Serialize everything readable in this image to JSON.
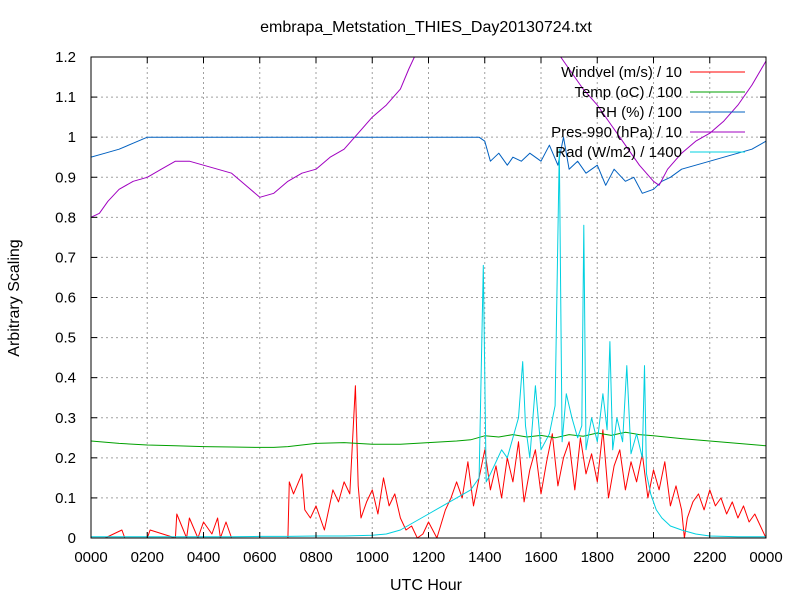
{
  "chart_data": {
    "type": "line",
    "title": "embrapa_Metstation_THIES_Day20130724.txt",
    "xlabel": "UTC Hour",
    "ylabel": "Arbitrary Scaling",
    "xlim": [
      0,
      24
    ],
    "ylim": [
      0,
      1.2
    ],
    "grid": true,
    "legend_position": "top-right",
    "x_ticks": [
      {
        "value": 0,
        "label": "0000"
      },
      {
        "value": 2,
        "label": "0200"
      },
      {
        "value": 4,
        "label": "0400"
      },
      {
        "value": 6,
        "label": "0600"
      },
      {
        "value": 8,
        "label": "0800"
      },
      {
        "value": 10,
        "label": "1000"
      },
      {
        "value": 12,
        "label": "1200"
      },
      {
        "value": 14,
        "label": "1400"
      },
      {
        "value": 16,
        "label": "1600"
      },
      {
        "value": 18,
        "label": "1800"
      },
      {
        "value": 20,
        "label": "2000"
      },
      {
        "value": 22,
        "label": "2200"
      },
      {
        "value": 24,
        "label": "0000"
      }
    ],
    "y_ticks": [
      {
        "value": 0,
        "label": "0"
      },
      {
        "value": 0.1,
        "label": "0.1"
      },
      {
        "value": 0.2,
        "label": "0.2"
      },
      {
        "value": 0.3,
        "label": "0.3"
      },
      {
        "value": 0.4,
        "label": "0.4"
      },
      {
        "value": 0.5,
        "label": "0.5"
      },
      {
        "value": 0.6,
        "label": "0.6"
      },
      {
        "value": 0.7,
        "label": "0.7"
      },
      {
        "value": 0.8,
        "label": "0.8"
      },
      {
        "value": 0.9,
        "label": "0.9"
      },
      {
        "value": 1,
        "label": "1"
      },
      {
        "value": 1.1,
        "label": "1.1"
      },
      {
        "value": 1.2,
        "label": "1.2"
      }
    ],
    "series": [
      {
        "name": "Windvel (m/s) / 10",
        "color": "#ff0000",
        "x": [
          0,
          0.5,
          1.1,
          1.2,
          1.5,
          2.0,
          2.1,
          3.0,
          3.05,
          3.4,
          3.5,
          3.8,
          4.0,
          4.3,
          4.5,
          4.6,
          4.8,
          5.0,
          6.0,
          7.0,
          7.05,
          7.2,
          7.5,
          7.6,
          7.8,
          8.0,
          8.3,
          8.6,
          8.8,
          9.0,
          9.2,
          9.4,
          9.5,
          9.6,
          9.8,
          10.0,
          10.2,
          10.4,
          10.6,
          10.8,
          11.0,
          11.2,
          11.4,
          11.6,
          11.8,
          12.0,
          12.3,
          12.6,
          12.8,
          13.0,
          13.2,
          13.4,
          13.6,
          13.8,
          14.0,
          14.2,
          14.4,
          14.6,
          14.8,
          15.0,
          15.2,
          15.4,
          15.6,
          15.8,
          16.0,
          16.2,
          16.4,
          16.6,
          16.8,
          17.0,
          17.2,
          17.4,
          17.6,
          17.8,
          18.0,
          18.2,
          18.4,
          18.6,
          18.8,
          19.0,
          19.2,
          19.4,
          19.6,
          19.8,
          20.0,
          20.2,
          20.4,
          20.6,
          20.8,
          21.0,
          21.1,
          21.2,
          21.4,
          21.6,
          21.8,
          22.0,
          22.2,
          22.4,
          22.6,
          22.8,
          23.0,
          23.2,
          23.4,
          23.6,
          23.8,
          24.0
        ],
        "values": [
          0.0,
          0.0,
          0.02,
          0.0,
          0.0,
          0.0,
          0.02,
          0.0,
          0.06,
          0.0,
          0.05,
          0.0,
          0.04,
          0.01,
          0.05,
          0.0,
          0.04,
          0.0,
          0.0,
          0.0,
          0.14,
          0.11,
          0.16,
          0.07,
          0.05,
          0.08,
          0.02,
          0.12,
          0.09,
          0.14,
          0.11,
          0.38,
          0.13,
          0.05,
          0.09,
          0.12,
          0.06,
          0.15,
          0.08,
          0.11,
          0.05,
          0.02,
          0.03,
          0.0,
          0.01,
          0.04,
          0.0,
          0.07,
          0.1,
          0.14,
          0.1,
          0.19,
          0.08,
          0.15,
          0.22,
          0.12,
          0.18,
          0.1,
          0.2,
          0.14,
          0.24,
          0.09,
          0.17,
          0.22,
          0.11,
          0.19,
          0.26,
          0.13,
          0.2,
          0.24,
          0.12,
          0.25,
          0.16,
          0.21,
          0.14,
          0.27,
          0.1,
          0.18,
          0.22,
          0.12,
          0.19,
          0.14,
          0.21,
          0.1,
          0.17,
          0.12,
          0.19,
          0.08,
          0.13,
          0.07,
          0.0,
          0.05,
          0.09,
          0.11,
          0.07,
          0.12,
          0.08,
          0.1,
          0.06,
          0.09,
          0.05,
          0.08,
          0.04,
          0.06,
          0.03,
          0.0
        ]
      },
      {
        "name": "Temp (oC) / 100",
        "color": "#00a000",
        "x": [
          0,
          1,
          2,
          3,
          4,
          5,
          6,
          6.5,
          7,
          7.5,
          8,
          9,
          10,
          11,
          12,
          13,
          13.5,
          14,
          14.5,
          15,
          15.5,
          16,
          16.5,
          17,
          17.5,
          18,
          18.5,
          19,
          19.5,
          20,
          21,
          22,
          23,
          24
        ],
        "values": [
          0.242,
          0.236,
          0.232,
          0.23,
          0.228,
          0.227,
          0.226,
          0.226,
          0.228,
          0.232,
          0.236,
          0.238,
          0.234,
          0.234,
          0.238,
          0.242,
          0.245,
          0.255,
          0.252,
          0.258,
          0.252,
          0.256,
          0.25,
          0.258,
          0.254,
          0.262,
          0.256,
          0.264,
          0.258,
          0.255,
          0.248,
          0.242,
          0.236,
          0.23
        ]
      },
      {
        "name": "RH (%) / 100",
        "color": "#0060c0",
        "x": [
          0,
          0.5,
          1.0,
          1.5,
          2.0,
          3,
          4,
          5,
          6,
          7,
          8,
          9,
          10,
          11,
          12,
          13,
          13.8,
          14.0,
          14.2,
          14.5,
          14.8,
          15.0,
          15.3,
          15.6,
          16.0,
          16.3,
          16.6,
          16.8,
          17.0,
          17.3,
          17.6,
          18.0,
          18.3,
          18.6,
          19.0,
          19.3,
          19.6,
          20.0,
          20.3,
          20.6,
          21.0,
          21.5,
          22.0,
          22.5,
          23.0,
          23.5,
          24.0
        ],
        "values": [
          0.95,
          0.96,
          0.97,
          0.985,
          1.0,
          1.0,
          1.0,
          1.0,
          1.0,
          1.0,
          1.0,
          1.0,
          1.0,
          1.0,
          1.0,
          1.0,
          1.0,
          0.99,
          0.94,
          0.96,
          0.93,
          0.95,
          0.94,
          0.96,
          0.94,
          0.98,
          0.93,
          1.0,
          0.92,
          0.94,
          0.91,
          0.93,
          0.88,
          0.92,
          0.89,
          0.9,
          0.86,
          0.87,
          0.89,
          0.9,
          0.92,
          0.93,
          0.94,
          0.95,
          0.96,
          0.97,
          0.99
        ]
      },
      {
        "name": "Pres-990 (hPa) / 10",
        "color": "#a000c0",
        "x": [
          0,
          0.3,
          0.6,
          1.0,
          1.5,
          2.0,
          2.5,
          3.0,
          3.5,
          4.0,
          4.5,
          5.0,
          5.5,
          6.0,
          6.5,
          7.0,
          7.5,
          8.0,
          8.5,
          9.0,
          9.5,
          10.0,
          10.5,
          11.0,
          11.3,
          11.5,
          11.6,
          16.7,
          17.0,
          17.5,
          18.0,
          18.5,
          19.0,
          19.5,
          20.0,
          20.2,
          20.5,
          21.0,
          21.5,
          22.0,
          22.5,
          23.0,
          23.5,
          24.0
        ],
        "values": [
          0.8,
          0.81,
          0.84,
          0.87,
          0.89,
          0.9,
          0.92,
          0.94,
          0.94,
          0.93,
          0.92,
          0.91,
          0.88,
          0.85,
          0.86,
          0.89,
          0.91,
          0.92,
          0.95,
          0.97,
          1.01,
          1.05,
          1.08,
          1.12,
          1.17,
          1.2,
          1.2,
          1.2,
          1.17,
          1.12,
          1.08,
          1.03,
          0.98,
          0.93,
          0.89,
          0.88,
          0.92,
          0.96,
          0.99,
          1.01,
          1.04,
          1.08,
          1.13,
          1.19
        ]
      },
      {
        "name": "Rad (W/m2) / 1400",
        "color": "#00d0e0",
        "x": [
          0,
          5.0,
          6.0,
          7.0,
          8.0,
          9.0,
          10.0,
          10.5,
          11.0,
          11.5,
          12.0,
          12.5,
          13.0,
          13.5,
          13.8,
          13.95,
          14.05,
          14.2,
          14.6,
          14.8,
          15.0,
          15.2,
          15.35,
          15.45,
          15.6,
          15.8,
          16.0,
          16.3,
          16.5,
          16.65,
          16.75,
          16.9,
          17.1,
          17.3,
          17.45,
          17.52,
          17.6,
          17.8,
          18.0,
          18.2,
          18.35,
          18.45,
          18.55,
          18.7,
          18.9,
          19.05,
          19.2,
          19.4,
          19.6,
          19.68,
          19.75,
          19.9,
          20.1,
          20.3,
          20.6,
          21.0,
          21.5,
          22.0,
          23.0,
          24.0
        ],
        "values": [
          0.003,
          0.003,
          0.004,
          0.004,
          0.005,
          0.005,
          0.007,
          0.01,
          0.02,
          0.04,
          0.06,
          0.08,
          0.1,
          0.12,
          0.15,
          0.68,
          0.14,
          0.16,
          0.22,
          0.2,
          0.25,
          0.3,
          0.44,
          0.28,
          0.2,
          0.38,
          0.22,
          0.26,
          0.33,
          0.97,
          0.24,
          0.36,
          0.3,
          0.25,
          0.28,
          0.78,
          0.22,
          0.3,
          0.24,
          0.36,
          0.27,
          0.49,
          0.22,
          0.3,
          0.24,
          0.43,
          0.21,
          0.26,
          0.2,
          0.43,
          0.16,
          0.11,
          0.07,
          0.05,
          0.03,
          0.02,
          0.01,
          0.005,
          0.003,
          0.003
        ]
      }
    ]
  }
}
